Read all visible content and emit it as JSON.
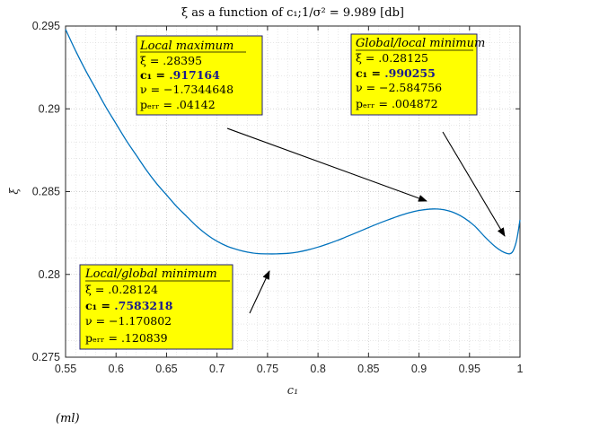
{
  "chart_data": {
    "type": "line",
    "title": "ξ as a function of c₁;1/σ² = 9.989 [db]",
    "xlabel": "c₁",
    "ylabel": "ξ",
    "xlim": [
      0.55,
      1.0
    ],
    "ylim": [
      0.275,
      0.295
    ],
    "xticks": [
      0.55,
      0.6,
      0.65,
      0.7,
      0.75,
      0.8,
      0.85,
      0.9,
      0.95,
      1.0
    ],
    "xtick_labels": [
      "0.55",
      "0.6",
      "0.65",
      "0.7",
      "0.75",
      "0.8",
      "0.85",
      "0.9",
      "0.95",
      "1"
    ],
    "yticks": [
      0.275,
      0.28,
      0.285,
      0.29,
      0.295
    ],
    "ytick_labels": [
      "0.275",
      "0.28",
      "0.285",
      "0.29",
      "0.295"
    ],
    "grid": true,
    "line_color": "#0072bd",
    "series": [
      {
        "x": [
          0.55,
          0.56,
          0.57,
          0.58,
          0.59,
          0.6,
          0.61,
          0.62,
          0.63,
          0.64,
          0.65,
          0.66,
          0.67,
          0.68,
          0.69,
          0.7,
          0.71,
          0.72,
          0.73,
          0.74,
          0.75,
          0.7583,
          0.77,
          0.78,
          0.79,
          0.8,
          0.81,
          0.82,
          0.83,
          0.84,
          0.85,
          0.86,
          0.87,
          0.88,
          0.89,
          0.9,
          0.91,
          0.917164,
          0.925,
          0.935,
          0.945,
          0.955,
          0.965,
          0.975,
          0.982,
          0.987,
          0.990255,
          0.993,
          0.996,
          0.998,
          1.0
        ],
        "y": [
          0.2948,
          0.2935,
          0.2923,
          0.2912,
          0.2901,
          0.2891,
          0.2881,
          0.2872,
          0.2863,
          0.2855,
          0.2848,
          0.2841,
          0.2835,
          0.2829,
          0.2824,
          0.282,
          0.2817,
          0.2815,
          0.28135,
          0.28126,
          0.28124,
          0.28124,
          0.28127,
          0.28135,
          0.28148,
          0.28165,
          0.28185,
          0.28207,
          0.28232,
          0.28257,
          0.28283,
          0.28308,
          0.28331,
          0.28353,
          0.28372,
          0.28386,
          0.28394,
          0.28395,
          0.2839,
          0.28372,
          0.2834,
          0.28293,
          0.28228,
          0.2817,
          0.2814,
          0.28127,
          0.28125,
          0.2814,
          0.2819,
          0.2825,
          0.2833
        ]
      }
    ],
    "annotations": [
      {
        "id": "local-maximum",
        "heading": "Local maximum",
        "lines": [
          "ξ = .28395",
          "c₁ = ",
          "ν = −1.7344648",
          "pₑᵣᵣ = .04142"
        ],
        "c1_value": ".917164",
        "target": [
          0.917164,
          0.28395
        ]
      },
      {
        "id": "global-local-minimum",
        "heading": "Global/local minimum",
        "lines": [
          "ξ = .0.28125",
          "c₁ = ",
          "ν = −2.584756",
          "pₑᵣᵣ = .004872"
        ],
        "c1_value": ".990255",
        "target": [
          0.990255,
          0.28125
        ]
      },
      {
        "id": "local-global-minimum",
        "heading": "Local/global minimum",
        "lines": [
          "ξ = .0.28124",
          "c₁ = ",
          "ν = −1.170802",
          "pₑᵣᵣ = .120839"
        ],
        "c1_value": ".7583218",
        "target": [
          0.7583218,
          0.28124
        ]
      }
    ],
    "footer_fragment": "(ml)"
  },
  "colors": {
    "annotation_fill": "#ffff00",
    "annotation_border": "#1f1f7a"
  }
}
